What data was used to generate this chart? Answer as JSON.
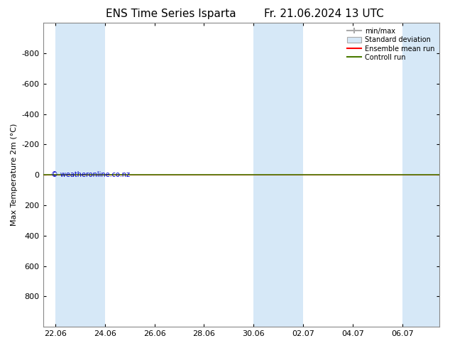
{
  "title": "ENS Time Series Isparta",
  "title2": "Fr. 21.06.2024 13 UTC",
  "ylabel": "Max Temperature 2m (°C)",
  "ylim": [
    -1000,
    1000
  ],
  "yticks": [
    -800,
    -600,
    -400,
    -200,
    0,
    200,
    400,
    600,
    800
  ],
  "xtick_labels": [
    "22.06",
    "24.06",
    "26.06",
    "28.06",
    "30.06",
    "02.07",
    "04.07",
    "06.07"
  ],
  "xtick_positions": [
    0,
    2,
    4,
    6,
    8,
    10,
    12,
    14
  ],
  "shaded_bands": [
    [
      0,
      1
    ],
    [
      1,
      2
    ],
    [
      8,
      9
    ],
    [
      9,
      10
    ],
    [
      14,
      15
    ]
  ],
  "flat_line_color_green": "#4a7a00",
  "flat_line_color_red": "#ff0000",
  "watermark": "© weatheronline.co.nz",
  "watermark_color": "#0000cc",
  "legend_entries": [
    "min/max",
    "Standard deviation",
    "Ensemble mean run",
    "Controll run"
  ],
  "band_color": "#d6e8f7",
  "background_color": "#ffffff",
  "spine_color": "#888888",
  "title_fontsize": 11,
  "axis_label_fontsize": 8,
  "tick_fontsize": 8
}
